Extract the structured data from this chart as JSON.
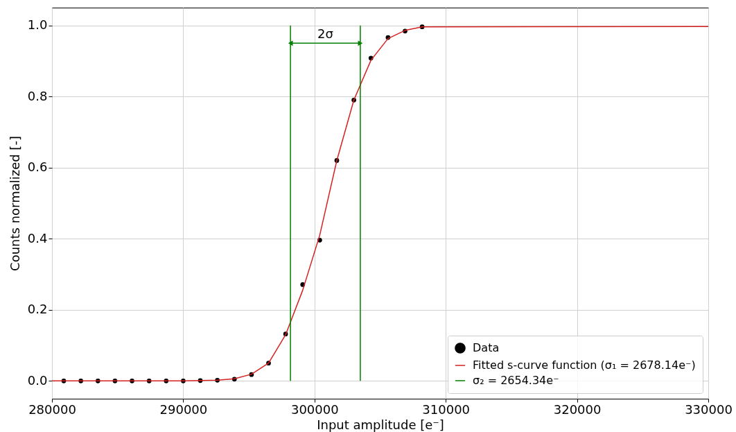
{
  "chart_data": {
    "type": "scatter",
    "xlabel": "Input amplitude [e⁻]",
    "ylabel": "Counts normalized [-]",
    "xlim": [
      280000,
      330000
    ],
    "xticks": [
      280000,
      290000,
      300000,
      310000,
      320000,
      330000
    ],
    "ylim": [
      -0.05,
      1.05
    ],
    "yticks": [
      {
        "value": 0,
        "label": "0.0"
      },
      {
        "value": 0.2,
        "label": "0.2"
      },
      {
        "value": 0.4,
        "label": "0.4"
      },
      {
        "value": 0.6,
        "label": "0.6"
      },
      {
        "value": 0.8,
        "label": "0.8"
      },
      {
        "value": 1,
        "label": "1.0"
      }
    ],
    "grid": true,
    "legend": "bottom right",
    "annotations": [
      "2σ"
    ],
    "series": [
      {
        "name": "Data",
        "marker": "circle",
        "color": "#000000",
        "x": [
          280900,
          282200,
          283500,
          284800,
          286100,
          287400,
          288700,
          290000,
          291300,
          292600,
          293900,
          295200,
          296500,
          297800,
          299100,
          300400,
          301700,
          303000,
          304300,
          305600,
          306900,
          308200
        ],
        "values": [
          0,
          0,
          0,
          0,
          0,
          0,
          0,
          0,
          0.001,
          0.002,
          0.005,
          0.018,
          0.05,
          0.132,
          0.271,
          0.396,
          0.62,
          0.79,
          0.908,
          0.966,
          0.984,
          0.996
        ]
      },
      {
        "name": "Fitted s-curve function (σ₁ = 2678.14e⁻)",
        "type": "line",
        "marker": "none",
        "color": "#d62020",
        "x": [
          280000,
          290000,
          291300,
          292600,
          293900,
          295200,
          296500,
          297800,
          299100,
          300400,
          301700,
          303000,
          304300,
          305600,
          306900,
          308200,
          330000
        ],
        "values": [
          0,
          0,
          0.001,
          0.002,
          0.006,
          0.019,
          0.05,
          0.13,
          0.255,
          0.41,
          0.62,
          0.79,
          0.902,
          0.963,
          0.986,
          0.996,
          0.997
        ]
      },
      {
        "name": "σ₂ = 2654.34e⁻",
        "type": "line",
        "marker": "none",
        "color": "#008000",
        "x": [
          298170,
          298170,
          300830,
          303490,
          303490
        ],
        "values": [
          0,
          1,
          null,
          1,
          0
        ]
      }
    ]
  }
}
